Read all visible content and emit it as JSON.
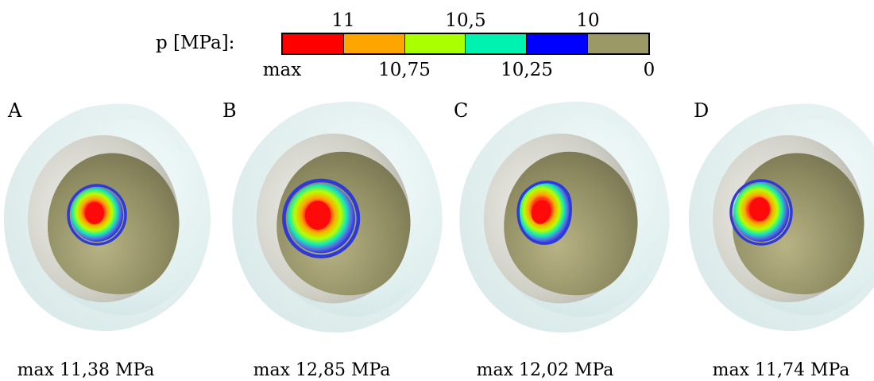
{
  "legend": {
    "label": "p [MPa]:",
    "top_ticks": [
      "11",
      "10,5",
      "10"
    ],
    "bottom_ticks": [
      "max",
      "10,75",
      "10,25",
      "0"
    ],
    "bands": [
      {
        "color": "#ff0000"
      },
      {
        "color": "#ffa500"
      },
      {
        "color": "#aaff00"
      },
      {
        "color": "#00f2b0"
      },
      {
        "color": "#0000ff"
      },
      {
        "color": "#9b9966"
      }
    ]
  },
  "panels": [
    {
      "letter": "A",
      "caption": "max 11,38 MPa"
    },
    {
      "letter": "B",
      "caption": "max 12,85 MPa"
    },
    {
      "letter": "C",
      "caption": "max 12,02 MPa"
    },
    {
      "letter": "D",
      "caption": "max 11,74 MPa"
    }
  ],
  "colors": {
    "shell": "#dfeeee",
    "cup_inner": "#cfcfc6",
    "cup_surface": "#8f8c62",
    "contact_ring": "#2d3ad8"
  }
}
